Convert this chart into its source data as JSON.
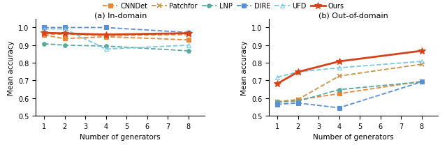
{
  "x": [
    1,
    2,
    4,
    8
  ],
  "indomain": {
    "CNNDet": [
      0.958,
      0.937,
      0.948,
      0.93
    ],
    "Patchfor": [
      0.963,
      0.962,
      0.955,
      0.96
    ],
    "LNP": [
      0.908,
      0.9,
      0.895,
      0.868
    ],
    "DIRE": [
      1.0,
      1.0,
      1.0,
      0.972
    ],
    "UFD": [
      0.992,
      0.992,
      0.878,
      0.9
    ],
    "Ours": [
      0.97,
      0.967,
      0.96,
      0.968
    ]
  },
  "outdomain": {
    "CNNDet": [
      0.575,
      0.59,
      0.625,
      0.695
    ],
    "Patchfor": [
      0.58,
      0.592,
      0.725,
      0.792
    ],
    "LNP": [
      0.578,
      0.582,
      0.648,
      0.692
    ],
    "DIRE": [
      0.565,
      0.572,
      0.545,
      0.692
    ],
    "UFD": [
      0.718,
      0.748,
      0.772,
      0.808
    ],
    "Ours": [
      0.682,
      0.748,
      0.808,
      0.868
    ]
  },
  "colors": {
    "CNNDet": "#E8873A",
    "Patchfor": "#C8934A",
    "LNP": "#5BA8A0",
    "DIRE": "#5B8FD4",
    "UFD": "#7DC8E0",
    "Ours": "#D4431A"
  },
  "markers": {
    "CNNDet": "s",
    "Patchfor": "x",
    "LNP": "o",
    "DIRE": "s",
    "UFD": "^",
    "Ours": "*"
  },
  "linestyles": {
    "CNNDet": "--",
    "Patchfor": "--",
    "LNP": "--",
    "DIRE": "--",
    "UFD": "--",
    "Ours": "-"
  },
  "linewidths": {
    "CNNDet": 1.3,
    "Patchfor": 1.3,
    "LNP": 1.3,
    "DIRE": 1.3,
    "UFD": 1.3,
    "Ours": 2.0
  },
  "markersizes": {
    "CNNDet": 4,
    "Patchfor": 5,
    "LNP": 4,
    "DIRE": 4,
    "UFD": 4,
    "Ours": 7
  },
  "ylim": [
    0.5,
    1.05
  ],
  "yticks": [
    0.5,
    0.6,
    0.7,
    0.8,
    0.9,
    1.0
  ],
  "xticks": [
    1,
    2,
    3,
    4,
    5,
    6,
    7,
    8
  ],
  "xlim": [
    0.6,
    8.8
  ],
  "xlabel": "Number of generators",
  "ylabel": "Mean accuracy",
  "title_in": "(a) In-domain",
  "title_out": "(b) Out-of-domain",
  "legend_order": [
    "CNNDet",
    "Patchfor",
    "LNP",
    "DIRE",
    "UFD",
    "Ours"
  ]
}
